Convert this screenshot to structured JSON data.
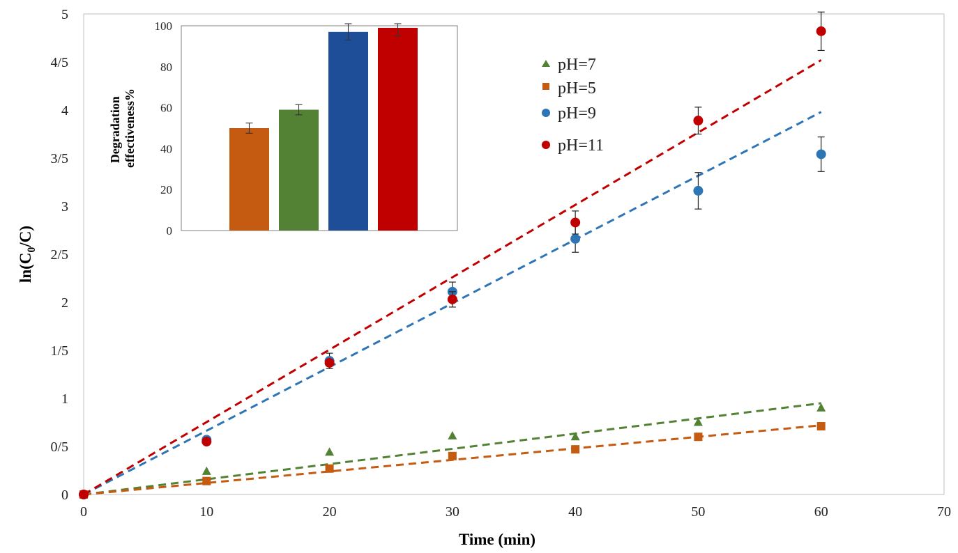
{
  "chart_data": [
    {
      "type": "scatter",
      "xlabel": "Time (min)",
      "ylabel_base": "ln(C",
      "ylabel_sub": "0",
      "ylabel_tail": "/C)",
      "xlim": [
        0,
        70
      ],
      "ylim": [
        0,
        5
      ],
      "x_ticks": [
        "0",
        "10",
        "20",
        "30",
        "40",
        "50",
        "60",
        "70"
      ],
      "y_ticks": [
        "0",
        "0/5",
        "1",
        "1/5",
        "2",
        "2/5",
        "3",
        "3/5",
        "4",
        "4/5",
        "5"
      ],
      "x_tick_values": [
        0,
        10,
        20,
        30,
        40,
        50,
        60,
        70
      ],
      "y_tick_values": [
        0,
        0.5,
        1,
        1.5,
        2,
        2.5,
        3,
        3.5,
        4,
        4.5,
        5
      ],
      "grid": false,
      "legend_position": "top-right",
      "x": [
        0,
        10,
        20,
        30,
        40,
        50,
        60
      ],
      "series": [
        {
          "name": "pH=7",
          "marker": "triangle",
          "color": "#548235",
          "values": [
            0,
            0.24,
            0.44,
            0.61,
            0.6,
            0.75,
            0.9
          ],
          "errors": [
            0,
            0,
            0,
            0,
            0,
            0,
            0
          ],
          "trend": [
            0,
            0.95
          ]
        },
        {
          "name": "pH=5",
          "marker": "square",
          "color": "#c55a11",
          "values": [
            0,
            0.14,
            0.27,
            0.4,
            0.47,
            0.6,
            0.71
          ],
          "errors": [
            0,
            0,
            0,
            0,
            0,
            0,
            0
          ],
          "trend": [
            0,
            0.72
          ]
        },
        {
          "name": "pH=9",
          "marker": "circle",
          "color": "#2e75b6",
          "values": [
            0,
            0.57,
            1.39,
            2.11,
            2.66,
            3.16,
            3.54
          ],
          "errors": [
            0,
            0,
            0.08,
            0.1,
            0.14,
            0.19,
            0.18
          ],
          "trend": [
            0,
            3.98
          ]
        },
        {
          "name": "pH=11",
          "marker": "circle",
          "color": "#c00000",
          "values": [
            0,
            0.55,
            1.37,
            2.03,
            2.83,
            3.89,
            4.82
          ],
          "errors": [
            0,
            0,
            0,
            0.08,
            0.12,
            0.14,
            0.2
          ],
          "trend": [
            0,
            4.52
          ]
        }
      ]
    },
    {
      "type": "bar",
      "ylabel_line1": "Degradation",
      "ylabel_line2": "effectiveness%",
      "ylim": [
        0,
        100
      ],
      "y_ticks": [
        "0",
        "20",
        "40",
        "60",
        "80",
        "100"
      ],
      "y_tick_values": [
        0,
        20,
        40,
        60,
        80,
        100
      ],
      "values": [
        50,
        59,
        97,
        99
      ],
      "errors": [
        2.5,
        2.5,
        4,
        4
      ],
      "colors": [
        "#c55a11",
        "#548235",
        "#1f4e99",
        "#c00000"
      ]
    }
  ]
}
